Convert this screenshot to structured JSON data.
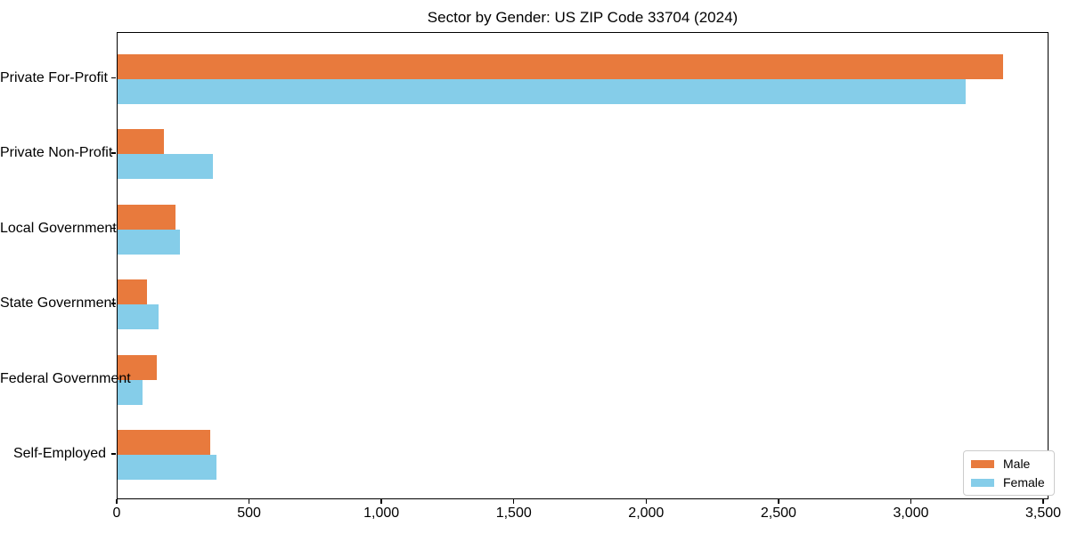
{
  "chart_data": {
    "type": "bar",
    "orientation": "horizontal",
    "title": "Sector by Gender: US ZIP Code 33704 (2024)",
    "categories": [
      "Private For-Profit",
      "Private Non-Profit",
      "Local Government",
      "State Government",
      "Federal Government",
      "Self-Employed"
    ],
    "series": [
      {
        "name": "Male",
        "color": "#e87a3d",
        "values": [
          3350,
          175,
          220,
          110,
          150,
          350
        ]
      },
      {
        "name": "Female",
        "color": "#85cde9",
        "values": [
          3210,
          360,
          235,
          155,
          95,
          375
        ]
      }
    ],
    "xlim": [
      0,
      3520
    ],
    "x_tick_values": [
      0,
      500,
      1000,
      1500,
      2000,
      2500,
      3000,
      3500
    ],
    "x_tick_labels": [
      "0",
      "500",
      "1,000",
      "1,500",
      "2,000",
      "2,500",
      "3,000",
      "3,500"
    ],
    "xlabel": "",
    "ylabel": "",
    "grid": false,
    "legend_position": "lower right",
    "bar_color_male": "#e87a3d",
    "bar_color_female": "#85cde9",
    "axis_color": "#000000",
    "legend_border_color": "#cccccc"
  }
}
